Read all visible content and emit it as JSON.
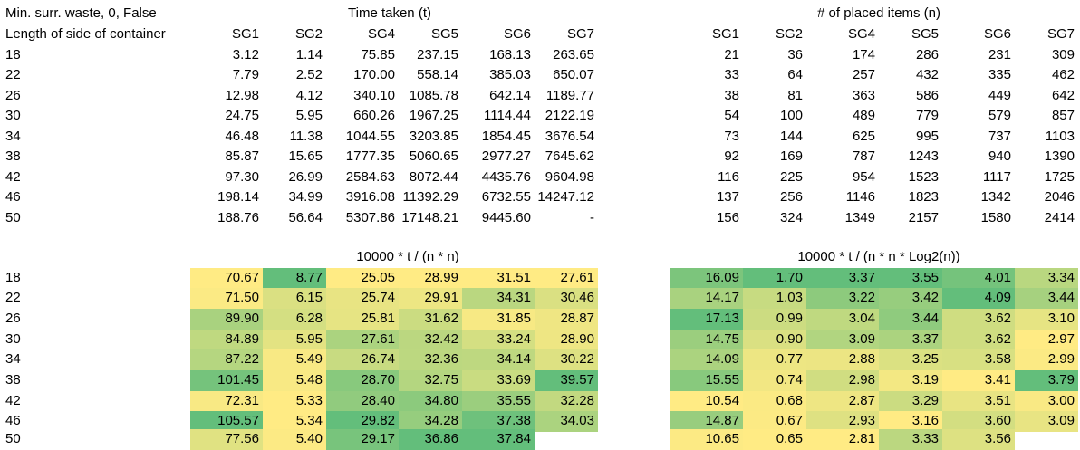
{
  "header": {
    "title": "Min. surr. waste, 0, False",
    "row_label": "Length of side of container",
    "time_title": "Time taken (t)",
    "items_title": "# of placed items (n)",
    "ratio1_title": "10000 * t / (n * n)",
    "ratio2_title": "10000 * t / (n * n * Log2(n))"
  },
  "columns": [
    "SG1",
    "SG2",
    "SG4",
    "SG5",
    "SG6",
    "SG7"
  ],
  "lengths": [
    "18",
    "22",
    "26",
    "30",
    "34",
    "38",
    "42",
    "46",
    "50"
  ],
  "time": [
    [
      "3.12",
      "1.14",
      "75.85",
      "237.15",
      "168.13",
      "263.65"
    ],
    [
      "7.79",
      "2.52",
      "170.00",
      "558.14",
      "385.03",
      "650.07"
    ],
    [
      "12.98",
      "4.12",
      "340.10",
      "1085.78",
      "642.14",
      "1189.77"
    ],
    [
      "24.75",
      "5.95",
      "660.26",
      "1967.25",
      "1114.44",
      "2122.19"
    ],
    [
      "46.48",
      "11.38",
      "1044.55",
      "3203.85",
      "1854.45",
      "3676.54"
    ],
    [
      "85.87",
      "15.65",
      "1777.35",
      "5060.65",
      "2977.27",
      "7645.62"
    ],
    [
      "97.30",
      "26.99",
      "2584.63",
      "8072.44",
      "4435.76",
      "9604.98"
    ],
    [
      "198.14",
      "34.99",
      "3916.08",
      "11392.29",
      "6732.55",
      "14247.12"
    ],
    [
      "188.76",
      "56.64",
      "5307.86",
      "17148.21",
      "9445.60",
      "-"
    ]
  ],
  "items": [
    [
      "21",
      "36",
      "174",
      "286",
      "231",
      "309"
    ],
    [
      "33",
      "64",
      "257",
      "432",
      "335",
      "462"
    ],
    [
      "38",
      "81",
      "363",
      "586",
      "449",
      "642"
    ],
    [
      "54",
      "100",
      "489",
      "779",
      "579",
      "857"
    ],
    [
      "73",
      "144",
      "625",
      "995",
      "737",
      "1103"
    ],
    [
      "92",
      "169",
      "787",
      "1243",
      "940",
      "1390"
    ],
    [
      "116",
      "225",
      "954",
      "1523",
      "1117",
      "1725"
    ],
    [
      "137",
      "256",
      "1146",
      "1823",
      "1342",
      "2046"
    ],
    [
      "156",
      "324",
      "1349",
      "2157",
      "1580",
      "2414"
    ]
  ],
  "ratio1": [
    [
      "70.67",
      "8.77",
      "25.05",
      "28.99",
      "31.51",
      "27.61"
    ],
    [
      "71.50",
      "6.15",
      "25.74",
      "29.91",
      "34.31",
      "30.46"
    ],
    [
      "89.90",
      "6.28",
      "25.81",
      "31.62",
      "31.85",
      "28.87"
    ],
    [
      "84.89",
      "5.95",
      "27.61",
      "32.42",
      "33.24",
      "28.90"
    ],
    [
      "87.22",
      "5.49",
      "26.74",
      "32.36",
      "34.14",
      "30.22"
    ],
    [
      "101.45",
      "5.48",
      "28.70",
      "32.75",
      "33.69",
      "39.57"
    ],
    [
      "72.31",
      "5.33",
      "28.40",
      "34.80",
      "35.55",
      "32.28"
    ],
    [
      "105.57",
      "5.34",
      "29.82",
      "34.28",
      "37.38",
      "34.03"
    ],
    [
      "77.56",
      "5.40",
      "29.17",
      "36.86",
      "37.84",
      ""
    ]
  ],
  "ratio2": [
    [
      "16.09",
      "1.70",
      "3.37",
      "3.55",
      "4.01",
      "3.34"
    ],
    [
      "14.17",
      "1.03",
      "3.22",
      "3.42",
      "4.09",
      "3.44"
    ],
    [
      "17.13",
      "0.99",
      "3.04",
      "3.44",
      "3.62",
      "3.10"
    ],
    [
      "14.75",
      "0.90",
      "3.09",
      "3.37",
      "3.62",
      "2.97"
    ],
    [
      "14.09",
      "0.77",
      "2.88",
      "3.25",
      "3.58",
      "2.99"
    ],
    [
      "15.55",
      "0.74",
      "2.98",
      "3.19",
      "3.41",
      "3.79"
    ],
    [
      "10.54",
      "0.68",
      "2.87",
      "3.29",
      "3.51",
      "3.00"
    ],
    [
      "14.87",
      "0.67",
      "2.93",
      "3.16",
      "3.60",
      "3.09"
    ],
    [
      "10.65",
      "0.65",
      "2.81",
      "3.33",
      "3.56",
      ""
    ]
  ],
  "colors": {
    "scale_low": "#ffeb84",
    "scale_high": "#63be7b"
  }
}
